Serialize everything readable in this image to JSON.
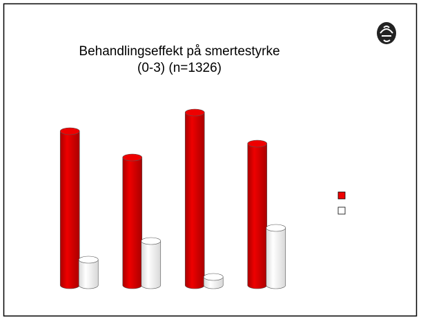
{
  "chart_data": {
    "type": "bar",
    "title": [
      "Behandlingseffekt på smertestyrke",
      "(0-3) (n=1326)"
    ],
    "categories": [
      null,
      null,
      null,
      null
    ],
    "series": [
      {
        "color": "#ee0000",
        "values": [
          2.23,
          1.85,
          2.5,
          2.05
        ]
      },
      {
        "color": "#ffffff",
        "values": [
          0.37,
          0.64,
          0.12,
          0.83
        ]
      }
    ],
    "ylim": [
      0,
      3
    ],
    "legend": "right"
  }
}
